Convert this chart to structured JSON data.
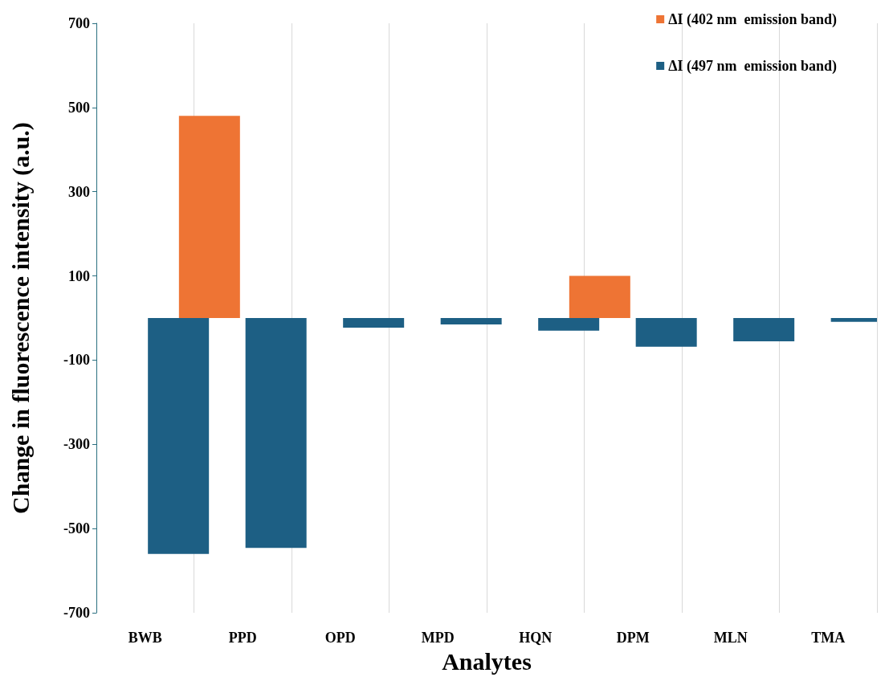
{
  "chart_data": {
    "type": "bar",
    "xlabel": "Analytes",
    "ylabel": "Change in fluorescence intensity (a.u.)",
    "categories": [
      "BWB",
      "PPD",
      "OPD",
      "MPD",
      "HQN",
      "DPM",
      "MLN",
      "TMA"
    ],
    "series": [
      {
        "name": "ΔI (402 nm  emission band)",
        "color": "#ee7434",
        "values": [
          0,
          480,
          0,
          0,
          0,
          100,
          0,
          0
        ]
      },
      {
        "name": "ΔI (497 nm  emission band)",
        "color": "#1d5f84",
        "values": [
          -560,
          -546,
          -23,
          -15,
          -30,
          -68,
          -55,
          -9
        ]
      }
    ],
    "ylim": [
      -700,
      700
    ],
    "yticks": [
      -700,
      -500,
      -300,
      -100,
      100,
      300,
      500,
      700
    ],
    "grid": "x",
    "legend": "top right"
  }
}
